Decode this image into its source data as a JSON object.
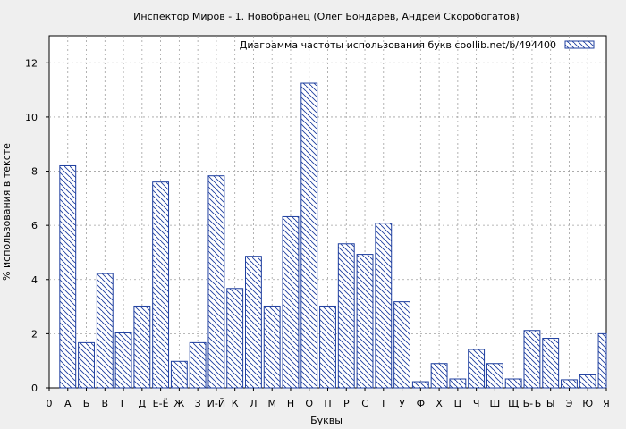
{
  "chart_data": {
    "type": "bar",
    "title": "Инспектор Миров - 1. Новобранец (Олег Бондарев, Андрей Скоробогатов)",
    "xlabel": "Буквы",
    "ylabel": "% использования в тексте",
    "legend": "Диаграмма частоты использования букв  coollib.net/b/494400",
    "legend_position": "top-right",
    "grid": true,
    "ylim": [
      0,
      13
    ],
    "yticks": [
      0,
      2,
      4,
      6,
      8,
      10,
      12
    ],
    "x_tick_labels": [
      "0",
      "А",
      "Б",
      "В",
      "Г",
      "Д",
      "Е-Ё",
      "Ж",
      "З",
      "И-Й",
      "К",
      "Л",
      "М",
      "Н",
      "О",
      "П",
      "Р",
      "С",
      "Т",
      "У",
      "Ф",
      "Х",
      "Ц",
      "Ч",
      "Ш",
      "Щ",
      "Ь-Ъ",
      "Ы",
      "Э",
      "Ю",
      "Я"
    ],
    "categories": [
      "А",
      "Б",
      "В",
      "Г",
      "Д",
      "Е-Ё",
      "Ж",
      "З",
      "И-Й",
      "К",
      "Л",
      "М",
      "Н",
      "О",
      "П",
      "Р",
      "С",
      "Т",
      "У",
      "Ф",
      "Х",
      "Ц",
      "Ч",
      "Ш",
      "Щ",
      "Ь-Ъ",
      "Ы",
      "Э",
      "Ю",
      "Я"
    ],
    "values": [
      8.2,
      1.67,
      4.22,
      2.03,
      3.02,
      7.6,
      0.98,
      1.67,
      7.83,
      3.67,
      4.86,
      3.02,
      6.32,
      11.25,
      3.02,
      5.32,
      4.93,
      6.08,
      3.18,
      0.23,
      0.9,
      0.33,
      1.42,
      0.9,
      0.33,
      2.12,
      1.83,
      0.3,
      0.48,
      2.0
    ],
    "colors": {
      "bar_stroke": "#1f3f9f",
      "hatch": "#1f3f9f",
      "bar_fill": "#ffffff"
    }
  }
}
